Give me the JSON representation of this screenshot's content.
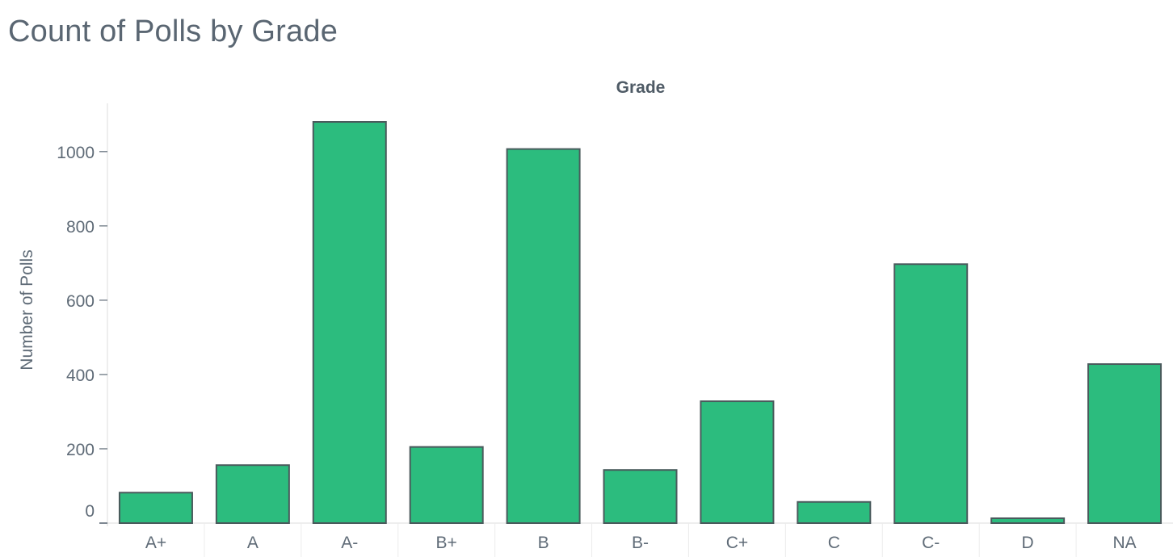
{
  "title": "Count of Polls by Grade",
  "colors": {
    "bar_fill": "#2cbc7e",
    "bar_stroke": "#4a5a5c",
    "text": "#5f6b77",
    "axis": "#dcdcdc"
  },
  "chart_data": {
    "type": "bar",
    "title": "Count of Polls by Grade",
    "header": "Grade",
    "xlabel": "",
    "ylabel": "Number of Polls",
    "categories": [
      "A+",
      "A",
      "A-",
      "B+",
      "B",
      "B-",
      "C+",
      "C",
      "C-",
      "D",
      "NA"
    ],
    "values": [
      82,
      156,
      1080,
      205,
      1007,
      143,
      328,
      57,
      697,
      13,
      428
    ],
    "ylim": [
      0,
      1130
    ],
    "yticks": [
      0,
      200,
      400,
      600,
      800,
      1000
    ],
    "grid": false,
    "legend": "none"
  }
}
